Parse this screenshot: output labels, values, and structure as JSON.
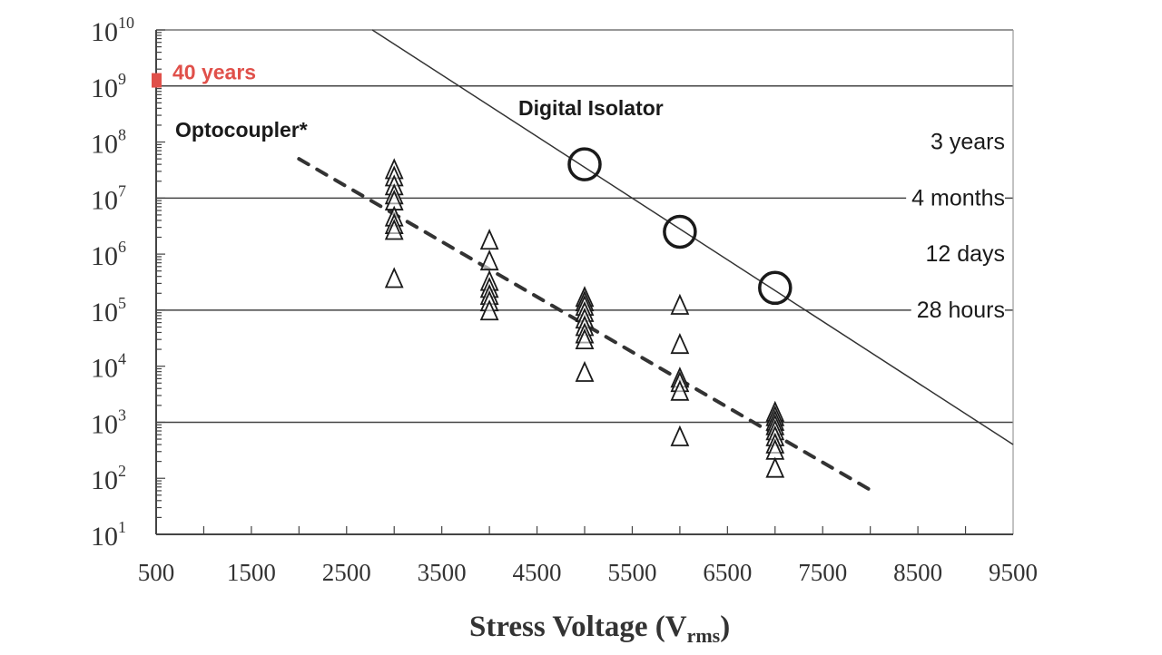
{
  "chart_data": {
    "type": "scatter",
    "title": "",
    "xlabel": "Stress Voltage (V",
    "xlabel_sub": "rms",
    "xlabel_close": ")",
    "ylabel": "",
    "yscale": "log",
    "xlim": [
      500,
      9500
    ],
    "ylim": [
      10,
      10000000000
    ],
    "x_ticks": [
      500,
      1500,
      2500,
      3500,
      4500,
      5500,
      6500,
      7500,
      8500,
      9500
    ],
    "x_tick_labels": [
      "500",
      "1500",
      "2500",
      "3500",
      "4500",
      "5500",
      "6500",
      "7500",
      "8500",
      "9500"
    ],
    "y_tick_exponents": [
      10,
      9,
      8,
      7,
      6,
      5,
      4,
      3,
      2,
      1
    ],
    "y_tick_base": "10",
    "grid_lines_y": [
      1000000000,
      10000000,
      100000,
      1000
    ],
    "reference_labels": [
      {
        "text": "3 years",
        "value": 100000000
      },
      {
        "text": "4 months",
        "value": 10000000
      },
      {
        "text": "12 days",
        "value": 1000000
      },
      {
        "text": "28 hours",
        "value": 100000
      }
    ],
    "highlight": {
      "text": "40 years",
      "value": 1260000000,
      "color": "#e0504a"
    },
    "series": [
      {
        "name": "Digital Isolator",
        "marker": "circle",
        "points": [
          [
            5000,
            40000000
          ],
          [
            6000,
            2500000
          ],
          [
            7000,
            250000
          ]
        ],
        "fit_line": {
          "style": "solid",
          "from": [
            2770,
            10000000000
          ],
          "to": [
            9500,
            400
          ]
        }
      },
      {
        "name": "Optocoupler*",
        "marker": "triangle",
        "points": [
          [
            3000,
            31600000
          ],
          [
            3000,
            23400000
          ],
          [
            3000,
            16200000
          ],
          [
            3000,
            11200000
          ],
          [
            3000,
            8700000
          ],
          [
            3000,
            4500000
          ],
          [
            3000,
            3300000
          ],
          [
            3000,
            2600000
          ],
          [
            3000,
            360000
          ],
          [
            4000,
            1740000
          ],
          [
            4000,
            740000
          ],
          [
            4000,
            320000
          ],
          [
            4000,
            240000
          ],
          [
            4000,
            180000
          ],
          [
            4000,
            138000
          ],
          [
            4000,
            95000
          ],
          [
            5000,
            166000
          ],
          [
            5000,
            138000
          ],
          [
            5000,
            115000
          ],
          [
            5000,
            89000
          ],
          [
            5000,
            68000
          ],
          [
            5000,
            50000
          ],
          [
            5000,
            37000
          ],
          [
            5000,
            29000
          ],
          [
            5000,
            7600
          ],
          [
            6000,
            120000
          ],
          [
            6000,
            24000
          ],
          [
            6000,
            6000
          ],
          [
            6000,
            5000
          ],
          [
            6000,
            3500
          ],
          [
            6000,
            540
          ],
          [
            7000,
            1480
          ],
          [
            7000,
            1230
          ],
          [
            7000,
            1020
          ],
          [
            7000,
            850
          ],
          [
            7000,
            690
          ],
          [
            7000,
            540
          ],
          [
            7000,
            400
          ],
          [
            7000,
            310
          ],
          [
            7000,
            148
          ]
        ],
        "fit_line": {
          "style": "dashed",
          "from": [
            2000,
            50000000
          ],
          "to": [
            8000,
            62
          ]
        }
      }
    ],
    "annotations": [
      {
        "text": "Digital Isolator"
      },
      {
        "text": "Optocoupler*"
      }
    ]
  }
}
